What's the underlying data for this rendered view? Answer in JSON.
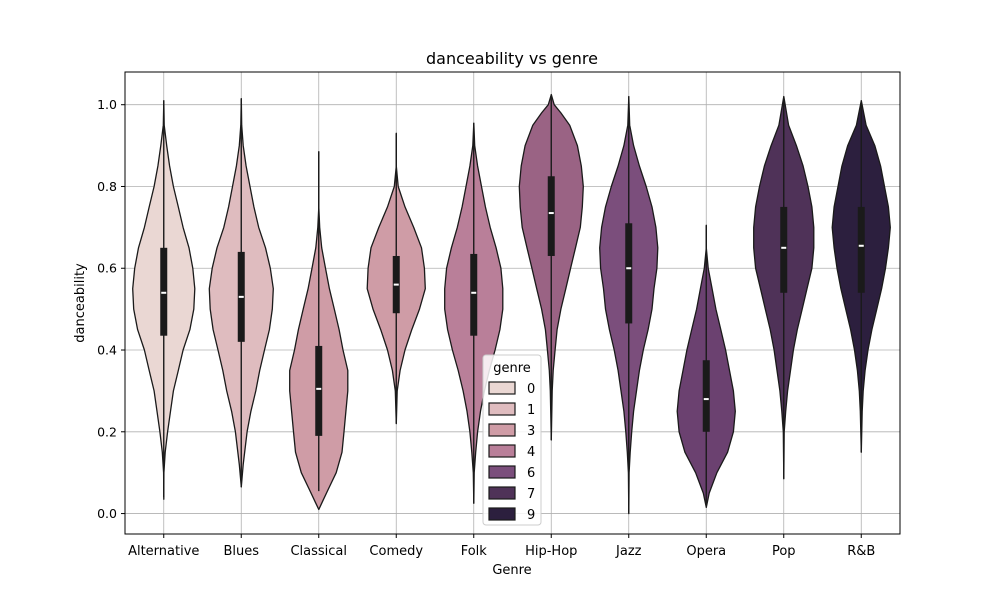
{
  "chart_data": {
    "type": "violin",
    "title": "danceability vs genre",
    "xlabel": "Genre",
    "ylabel": "danceability",
    "ylim": [
      -0.05,
      1.08
    ],
    "yticks": [
      0.0,
      0.2,
      0.4,
      0.6,
      0.8,
      1.0
    ],
    "ytick_labels": [
      "0.0",
      "0.2",
      "0.4",
      "0.6",
      "0.8",
      "1.0"
    ],
    "grid": true,
    "legend": {
      "title": "genre",
      "placement": "lower-center",
      "entries": [
        {
          "label": "0",
          "color": "#ead7d3"
        },
        {
          "label": "1",
          "color": "#dfbcbf"
        },
        {
          "label": "3",
          "color": "#cf9ca6"
        },
        {
          "label": "4",
          "color": "#b97f99"
        },
        {
          "label": "6",
          "color": "#7b4e7c"
        },
        {
          "label": "7",
          "color": "#4f3258"
        },
        {
          "label": "9",
          "color": "#2c1f3e"
        }
      ]
    },
    "categories": [
      {
        "name": "Alternative",
        "color": "#ead7d3",
        "min": 0.04,
        "q1": 0.435,
        "median": 0.54,
        "q3": 0.65,
        "max": 1.01,
        "profile": [
          [
            0.035,
            0
          ],
          [
            0.1,
            0.002
          ],
          [
            0.15,
            0.015
          ],
          [
            0.2,
            0.04
          ],
          [
            0.25,
            0.07
          ],
          [
            0.3,
            0.1
          ],
          [
            0.35,
            0.15
          ],
          [
            0.4,
            0.2
          ],
          [
            0.45,
            0.27
          ],
          [
            0.5,
            0.31
          ],
          [
            0.55,
            0.32
          ],
          [
            0.6,
            0.3
          ],
          [
            0.65,
            0.26
          ],
          [
            0.7,
            0.2
          ],
          [
            0.75,
            0.15
          ],
          [
            0.8,
            0.1
          ],
          [
            0.85,
            0.06
          ],
          [
            0.9,
            0.03
          ],
          [
            0.95,
            0.005
          ],
          [
            1.01,
            0
          ]
        ]
      },
      {
        "name": "Blues",
        "color": "#dfbcbf",
        "min": 0.065,
        "q1": 0.42,
        "median": 0.53,
        "q3": 0.64,
        "max": 1.015,
        "profile": [
          [
            0.065,
            0
          ],
          [
            0.12,
            0.02
          ],
          [
            0.2,
            0.06
          ],
          [
            0.25,
            0.1
          ],
          [
            0.3,
            0.15
          ],
          [
            0.35,
            0.19
          ],
          [
            0.4,
            0.24
          ],
          [
            0.45,
            0.29
          ],
          [
            0.5,
            0.32
          ],
          [
            0.55,
            0.33
          ],
          [
            0.6,
            0.3
          ],
          [
            0.65,
            0.25
          ],
          [
            0.7,
            0.18
          ],
          [
            0.75,
            0.13
          ],
          [
            0.8,
            0.09
          ],
          [
            0.85,
            0.05
          ],
          [
            0.9,
            0.02
          ],
          [
            0.95,
            0.005
          ],
          [
            1.015,
            0
          ]
        ]
      },
      {
        "name": "Classical",
        "color": "#cf9ca6",
        "min": 0.055,
        "q1": 0.19,
        "median": 0.305,
        "q3": 0.41,
        "max": 0.885,
        "profile": [
          [
            0.01,
            0
          ],
          [
            0.03,
            0.04
          ],
          [
            0.06,
            0.1
          ],
          [
            0.1,
            0.18
          ],
          [
            0.15,
            0.24
          ],
          [
            0.2,
            0.26
          ],
          [
            0.25,
            0.28
          ],
          [
            0.3,
            0.3
          ],
          [
            0.35,
            0.3
          ],
          [
            0.4,
            0.25
          ],
          [
            0.45,
            0.21
          ],
          [
            0.5,
            0.16
          ],
          [
            0.55,
            0.11
          ],
          [
            0.6,
            0.07
          ],
          [
            0.65,
            0.03
          ],
          [
            0.7,
            0.01
          ],
          [
            0.75,
            0
          ],
          [
            0.885,
            0
          ]
        ]
      },
      {
        "name": "Comedy",
        "color": "#cf9ca6",
        "min": 0.22,
        "q1": 0.49,
        "median": 0.56,
        "q3": 0.63,
        "max": 0.93,
        "profile": [
          [
            0.22,
            0
          ],
          [
            0.3,
            0.01
          ],
          [
            0.35,
            0.04
          ],
          [
            0.4,
            0.09
          ],
          [
            0.45,
            0.16
          ],
          [
            0.5,
            0.24
          ],
          [
            0.55,
            0.3
          ],
          [
            0.6,
            0.29
          ],
          [
            0.65,
            0.26
          ],
          [
            0.7,
            0.18
          ],
          [
            0.75,
            0.09
          ],
          [
            0.8,
            0.02
          ],
          [
            0.85,
            0
          ],
          [
            0.93,
            0
          ]
        ]
      },
      {
        "name": "Folk",
        "color": "#b97f99",
        "min": 0.025,
        "q1": 0.435,
        "median": 0.54,
        "q3": 0.635,
        "max": 0.955,
        "profile": [
          [
            0.025,
            0
          ],
          [
            0.1,
            0.005
          ],
          [
            0.15,
            0.02
          ],
          [
            0.2,
            0.04
          ],
          [
            0.25,
            0.07
          ],
          [
            0.3,
            0.11
          ],
          [
            0.35,
            0.16
          ],
          [
            0.4,
            0.22
          ],
          [
            0.45,
            0.27
          ],
          [
            0.5,
            0.3
          ],
          [
            0.55,
            0.3
          ],
          [
            0.6,
            0.28
          ],
          [
            0.65,
            0.23
          ],
          [
            0.7,
            0.17
          ],
          [
            0.75,
            0.12
          ],
          [
            0.8,
            0.08
          ],
          [
            0.85,
            0.04
          ],
          [
            0.9,
            0.01
          ],
          [
            0.955,
            0
          ]
        ]
      },
      {
        "name": "Hip-Hop",
        "color": "#9a6384",
        "min": 0.18,
        "q1": 0.63,
        "median": 0.735,
        "q3": 0.825,
        "max": 1.025,
        "profile": [
          [
            0.18,
            0
          ],
          [
            0.3,
            0.01
          ],
          [
            0.35,
            0.02
          ],
          [
            0.4,
            0.04
          ],
          [
            0.45,
            0.06
          ],
          [
            0.5,
            0.1
          ],
          [
            0.55,
            0.15
          ],
          [
            0.6,
            0.2
          ],
          [
            0.65,
            0.25
          ],
          [
            0.7,
            0.3
          ],
          [
            0.75,
            0.32
          ],
          [
            0.8,
            0.33
          ],
          [
            0.85,
            0.31
          ],
          [
            0.9,
            0.27
          ],
          [
            0.95,
            0.19
          ],
          [
            0.98,
            0.1
          ],
          [
            1.0,
            0.03
          ],
          [
            1.025,
            0
          ]
        ]
      },
      {
        "name": "Jazz",
        "color": "#7b4e7c",
        "min": 0.0,
        "q1": 0.465,
        "median": 0.6,
        "q3": 0.71,
        "max": 1.02,
        "profile": [
          [
            0.0,
            0
          ],
          [
            0.1,
            0.004
          ],
          [
            0.15,
            0.015
          ],
          [
            0.2,
            0.03
          ],
          [
            0.25,
            0.05
          ],
          [
            0.3,
            0.08
          ],
          [
            0.35,
            0.11
          ],
          [
            0.4,
            0.15
          ],
          [
            0.45,
            0.2
          ],
          [
            0.5,
            0.24
          ],
          [
            0.55,
            0.26
          ],
          [
            0.6,
            0.29
          ],
          [
            0.65,
            0.3
          ],
          [
            0.7,
            0.28
          ],
          [
            0.75,
            0.24
          ],
          [
            0.8,
            0.18
          ],
          [
            0.85,
            0.11
          ],
          [
            0.9,
            0.05
          ],
          [
            0.95,
            0.01
          ],
          [
            1.02,
            0
          ]
        ]
      },
      {
        "name": "Opera",
        "color": "#6b4170",
        "min": 0.015,
        "q1": 0.2,
        "median": 0.28,
        "q3": 0.375,
        "max": 0.705,
        "profile": [
          [
            0.015,
            0
          ],
          [
            0.05,
            0.03
          ],
          [
            0.1,
            0.11
          ],
          [
            0.15,
            0.22
          ],
          [
            0.2,
            0.28
          ],
          [
            0.25,
            0.3
          ],
          [
            0.3,
            0.28
          ],
          [
            0.35,
            0.24
          ],
          [
            0.4,
            0.2
          ],
          [
            0.45,
            0.15
          ],
          [
            0.5,
            0.1
          ],
          [
            0.55,
            0.06
          ],
          [
            0.6,
            0.02
          ],
          [
            0.65,
            0
          ],
          [
            0.705,
            0
          ]
        ]
      },
      {
        "name": "Pop",
        "color": "#4f3258",
        "min": 0.085,
        "q1": 0.54,
        "median": 0.65,
        "q3": 0.75,
        "max": 1.02,
        "profile": [
          [
            0.085,
            0
          ],
          [
            0.2,
            0.005
          ],
          [
            0.25,
            0.02
          ],
          [
            0.3,
            0.04
          ],
          [
            0.35,
            0.07
          ],
          [
            0.4,
            0.1
          ],
          [
            0.45,
            0.14
          ],
          [
            0.5,
            0.19
          ],
          [
            0.55,
            0.24
          ],
          [
            0.6,
            0.29
          ],
          [
            0.65,
            0.31
          ],
          [
            0.7,
            0.31
          ],
          [
            0.75,
            0.29
          ],
          [
            0.8,
            0.25
          ],
          [
            0.85,
            0.2
          ],
          [
            0.9,
            0.13
          ],
          [
            0.95,
            0.05
          ],
          [
            1.02,
            0
          ]
        ]
      },
      {
        "name": "R&B",
        "color": "#2c1f3e",
        "min": 0.15,
        "q1": 0.54,
        "median": 0.655,
        "q3": 0.75,
        "max": 1.01,
        "profile": [
          [
            0.15,
            0
          ],
          [
            0.25,
            0.01
          ],
          [
            0.3,
            0.02
          ],
          [
            0.35,
            0.04
          ],
          [
            0.4,
            0.07
          ],
          [
            0.45,
            0.11
          ],
          [
            0.5,
            0.16
          ],
          [
            0.55,
            0.21
          ],
          [
            0.6,
            0.25
          ],
          [
            0.65,
            0.28
          ],
          [
            0.7,
            0.3
          ],
          [
            0.75,
            0.28
          ],
          [
            0.8,
            0.24
          ],
          [
            0.85,
            0.2
          ],
          [
            0.9,
            0.14
          ],
          [
            0.95,
            0.05
          ],
          [
            1.01,
            0
          ]
        ]
      }
    ]
  }
}
